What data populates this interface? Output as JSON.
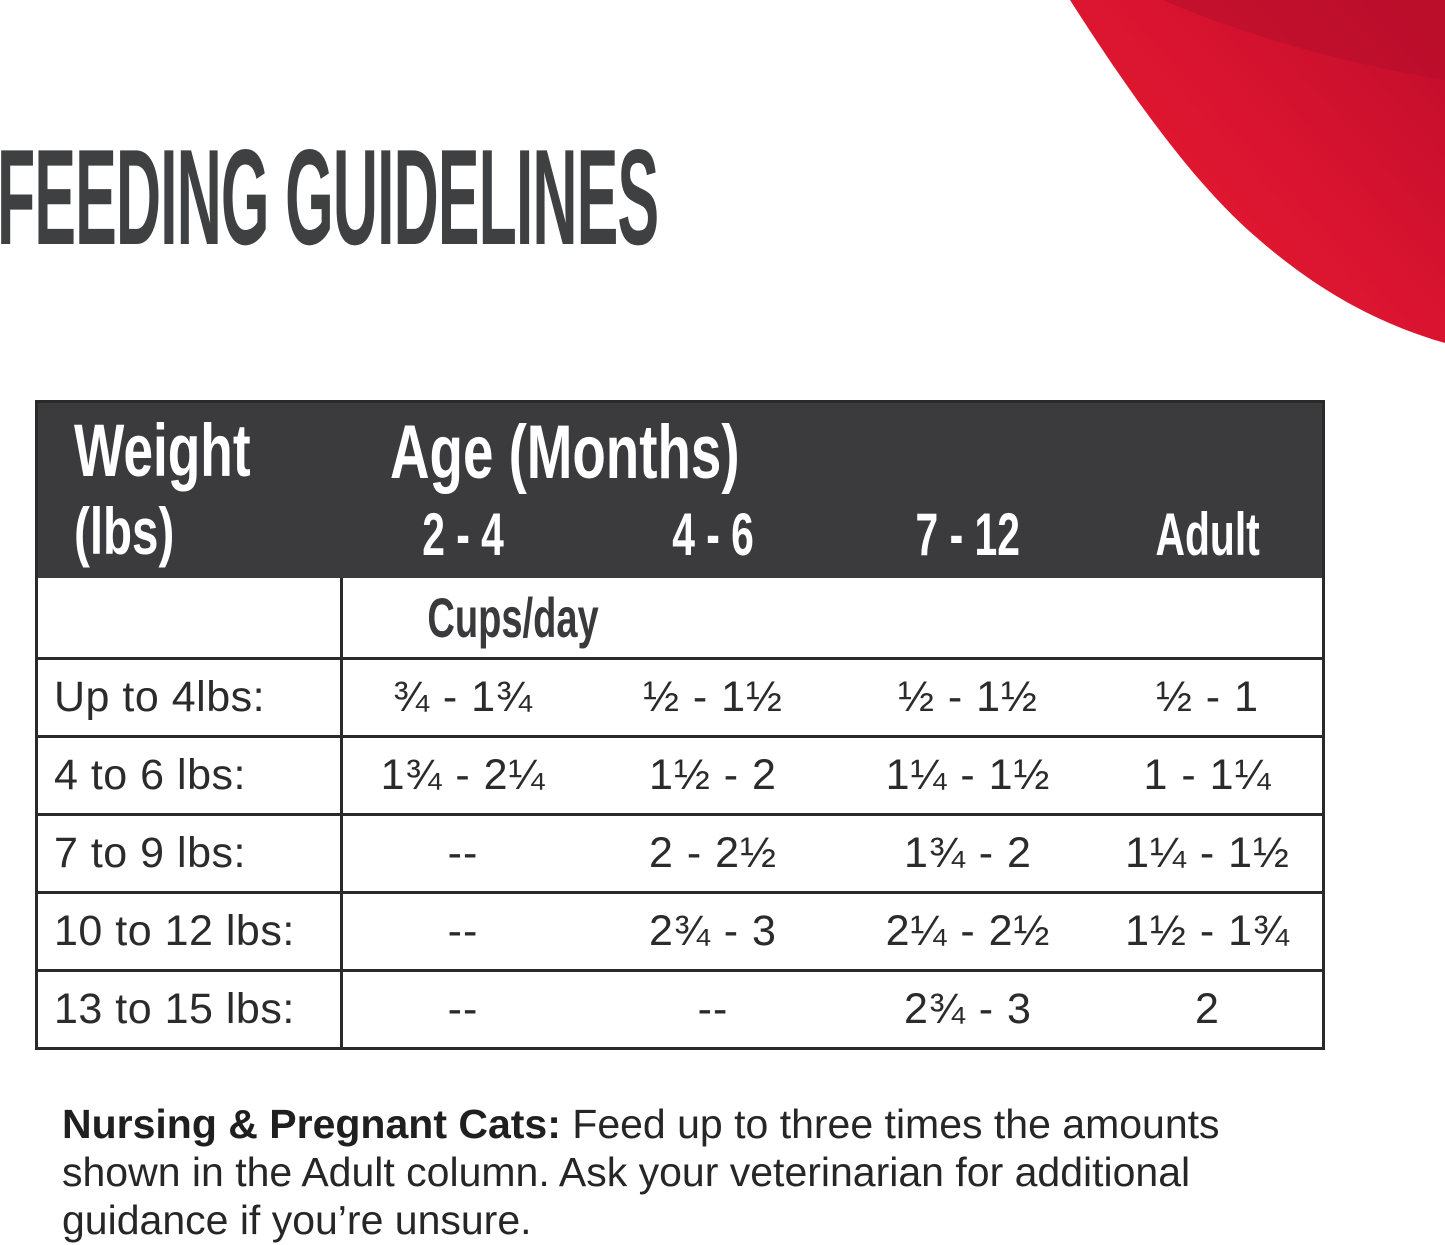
{
  "page": {
    "title": "FEEDING GUIDELINES"
  },
  "colors": {
    "header_bg": "#3b3b3d",
    "title_text": "#3f4042",
    "body_text": "#2b2b2b",
    "table_border": "#2a2a2a",
    "swoosh_red_bright": "#e81b2e",
    "swoosh_red_dark": "#c30e2c"
  },
  "table": {
    "weight_header": "Weight",
    "weight_unit": "(lbs)",
    "age_header": "Age (Months)",
    "age_columns": [
      "2 - 4",
      "4 - 6",
      "7 - 12",
      "Adult"
    ],
    "unit_label": "Cups/day",
    "rows": [
      {
        "weight": "Up to 4lbs:",
        "values": [
          "¾ - 1¾",
          "½ - 1½",
          "½ - 1½",
          "½ - 1"
        ]
      },
      {
        "weight": "4 to 6 lbs:",
        "values": [
          "1¾ - 2¼",
          "1½ - 2",
          "1¼ - 1½",
          "1 - 1¼"
        ]
      },
      {
        "weight": "7 to 9 lbs:",
        "values": [
          "--",
          "2 - 2½",
          "1¾ - 2",
          "1¼ - 1½"
        ]
      },
      {
        "weight": "10 to 12 lbs:",
        "values": [
          "--",
          "2¾ - 3",
          "2¼ - 2½",
          "1½ - 1¾"
        ]
      },
      {
        "weight": "13 to 15 lbs:",
        "values": [
          "--",
          "--",
          "2¾ - 3",
          "2"
        ]
      }
    ]
  },
  "note": {
    "bold_label": "Nursing & Pregnant Cats:",
    "line1_rest": " Feed up to three times the amounts",
    "line2": "shown in the Adult column. Ask your veterinarian for additional",
    "line3": "guidance if you’re unsure."
  }
}
